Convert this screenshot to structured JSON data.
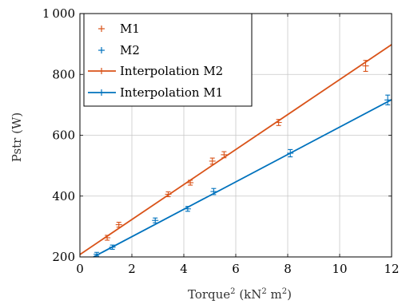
{
  "chart_data": {
    "type": "scatter",
    "xlabel": "Torque",
    "xlabel_sup": "2",
    "xlabel_unit_open": " (kN",
    "xlabel_unit_sup": "2",
    "xlabel_unit_close": " m",
    "xlabel_unit_sup2": "2",
    "xlabel_unit_end": ")",
    "ylabel": "Pstr (W)",
    "xlim": [
      0,
      12
    ],
    "ylim": [
      200,
      1000
    ],
    "xticks": [
      0,
      2,
      4,
      6,
      8,
      10,
      12
    ],
    "yticks": [
      200,
      400,
      600,
      800,
      1000
    ],
    "xtick_labels": [
      "0",
      "2",
      "4",
      "6",
      "8",
      "10",
      "12"
    ],
    "ytick_labels": [
      "200",
      "400",
      "600",
      "800",
      "1 000"
    ],
    "grid": true,
    "legend_position": "top-left",
    "series": [
      {
        "name": "M1",
        "kind": "points",
        "color": "#d95319",
        "points": [
          {
            "x": 1.05,
            "y": 263,
            "err": 8
          },
          {
            "x": 1.5,
            "y": 306,
            "err": 8
          },
          {
            "x": 3.4,
            "y": 406,
            "err": 8
          },
          {
            "x": 4.25,
            "y": 444,
            "err": 8
          },
          {
            "x": 5.1,
            "y": 515,
            "err": 10
          },
          {
            "x": 5.55,
            "y": 536,
            "err": 10
          },
          {
            "x": 7.65,
            "y": 642,
            "err": 10
          },
          {
            "x": 11.0,
            "y": 828,
            "err": 18
          }
        ]
      },
      {
        "name": "M2",
        "kind": "points",
        "color": "#0072bd",
        "points": [
          {
            "x": 0.65,
            "y": 209,
            "err": 6
          },
          {
            "x": 1.25,
            "y": 232,
            "err": 7
          },
          {
            "x": 2.9,
            "y": 320,
            "err": 8
          },
          {
            "x": 4.15,
            "y": 358,
            "err": 8
          },
          {
            "x": 5.15,
            "y": 415,
            "err": 10
          },
          {
            "x": 8.1,
            "y": 541,
            "err": 12
          },
          {
            "x": 11.85,
            "y": 716,
            "err": 16
          }
        ]
      },
      {
        "name": "Interpolation M2",
        "kind": "line",
        "color": "#d95319",
        "x": [
          0,
          12
        ],
        "y": [
          208,
          898
        ]
      },
      {
        "name": "Interpolation M1",
        "kind": "line",
        "color": "#0072bd",
        "x": [
          0.3,
          12
        ],
        "y": [
          190,
          717
        ]
      }
    ]
  }
}
